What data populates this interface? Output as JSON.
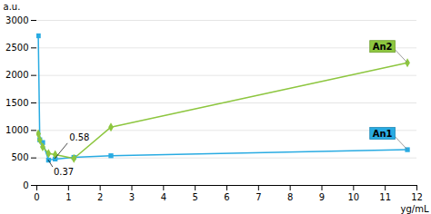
{
  "chart_data": {
    "type": "line",
    "xlabel": "yg/mL",
    "ylabel": "a.u.",
    "x": [
      0.046,
      0.093,
      0.185,
      0.37,
      0.58,
      1.17,
      2.34,
      11.7
    ],
    "series": [
      {
        "name": "An1",
        "color": "#29ABE2",
        "marker": "square",
        "values": [
          2720,
          830,
          780,
          460,
          480,
          510,
          540,
          650
        ]
      },
      {
        "name": "An2",
        "color": "#8DC63F",
        "marker": "diamond",
        "values": [
          940,
          830,
          700,
          580,
          560,
          490,
          1060,
          2230
        ]
      }
    ],
    "xlim": [
      0,
      12
    ],
    "ylim": [
      0,
      3000
    ],
    "xticks": [
      0,
      1,
      2,
      3,
      4,
      5,
      6,
      7,
      8,
      9,
      10,
      11,
      12
    ],
    "yticks": [
      0,
      500,
      1000,
      1500,
      2000,
      2500,
      3000
    ],
    "grid": "y",
    "annotations": [
      {
        "text": "0.58",
        "x": 0.58,
        "y": 480
      },
      {
        "text": "0.37",
        "x": 0.37,
        "y": 460
      }
    ]
  }
}
